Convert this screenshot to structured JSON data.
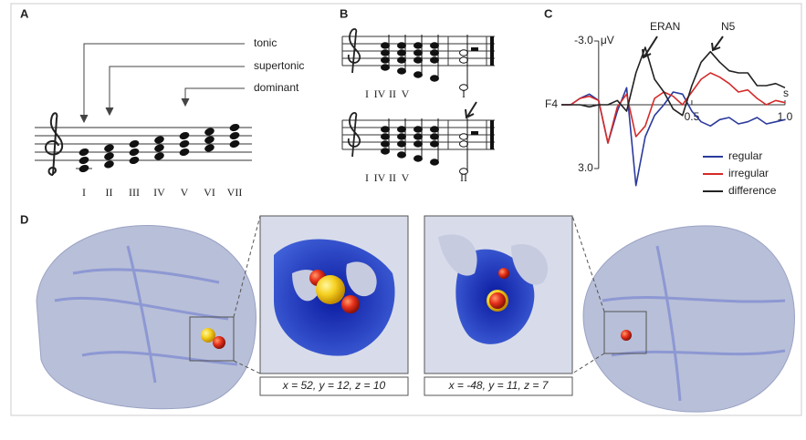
{
  "panel_a": {
    "label": "A",
    "annotations": [
      "tonic",
      "supertonic",
      "dominant"
    ],
    "numerals": [
      "I",
      "II",
      "III",
      "IV",
      "V",
      "VI",
      "VII"
    ]
  },
  "panel_b": {
    "label": "B",
    "top_numerals": [
      "I",
      "IV",
      "II",
      "V",
      "I"
    ],
    "bottom_numerals": [
      "I",
      "IV",
      "II",
      "V",
      "II"
    ]
  },
  "panel_c": {
    "label": "C"
  },
  "chart_data": {
    "type": "line",
    "channel": "F4",
    "y_unit": "μV",
    "x_unit": "s",
    "annotations": [
      "ERAN",
      "N5"
    ],
    "x": [
      -0.2,
      -0.15,
      -0.1,
      -0.05,
      0,
      0.05,
      0.1,
      0.15,
      0.2,
      0.25,
      0.3,
      0.35,
      0.4,
      0.45,
      0.5,
      0.55,
      0.6,
      0.65,
      0.7,
      0.75,
      0.8,
      0.85,
      0.9,
      0.95,
      1.0
    ],
    "series": [
      {
        "name": "regular",
        "color": "#2b3a9c",
        "values": [
          0,
          0,
          -0.3,
          -0.5,
          -0.2,
          1.8,
          0.3,
          -0.8,
          3.8,
          1.5,
          0.5,
          0,
          -0.6,
          -0.5,
          0.3,
          0.8,
          1.0,
          0.7,
          0.6,
          0.9,
          0.8,
          0.6,
          0.9,
          0.8,
          0.7
        ]
      },
      {
        "name": "irregular",
        "color": "#d42a2a",
        "values": [
          0,
          0,
          -0.3,
          -0.4,
          -0.2,
          1.8,
          0.1,
          -0.5,
          1.5,
          1.0,
          -0.3,
          -0.6,
          -0.4,
          0,
          -0.6,
          -1.2,
          -1.5,
          -1.3,
          -1.0,
          -0.6,
          -0.7,
          -0.3,
          0,
          -0.2,
          -0.1
        ]
      },
      {
        "name": "difference",
        "color": "#222222",
        "values": [
          0,
          0,
          0,
          0.1,
          0,
          0,
          -0.2,
          0.3,
          -1.5,
          -2.7,
          -1.2,
          -0.6,
          0.2,
          0.5,
          -0.9,
          -2.0,
          -2.5,
          -2.0,
          -1.6,
          -1.5,
          -1.5,
          -0.9,
          -0.9,
          -1.0,
          -0.8
        ]
      }
    ],
    "xlim": [
      -0.2,
      1.0
    ],
    "xticks": [
      0.5,
      {
        "value": 1,
        "label": "1.0"
      }
    ],
    "ylim": [
      3,
      -3
    ],
    "yticks": [
      {
        "value": -3,
        "label": "-3.0"
      },
      {
        "value": 3,
        "label": "3.0"
      }
    ],
    "legend": "lower right"
  },
  "panel_d": {
    "label": "D",
    "coordinates": [
      "x = 52, y = 12, z = 10",
      "x = -48, y = 11, z = 7"
    ]
  }
}
